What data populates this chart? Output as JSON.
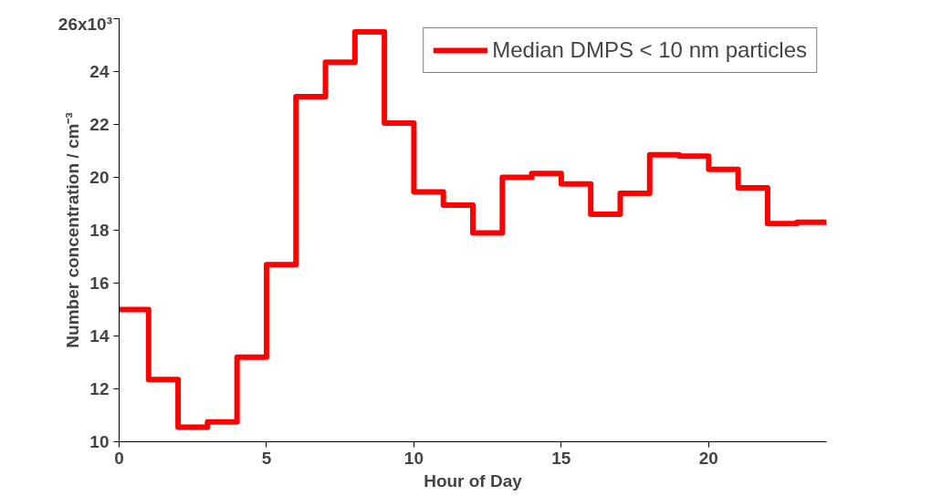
{
  "chart_data": {
    "type": "step",
    "xlabel": "Hour of Day",
    "ylabel": "Number concentration / cm⁻³",
    "x": [
      0,
      1,
      2,
      3,
      4,
      5,
      6,
      7,
      8,
      9,
      10,
      11,
      12,
      13,
      14,
      15,
      16,
      17,
      18,
      19,
      20,
      21,
      22,
      23,
      24
    ],
    "series": [
      {
        "name": "Median DMPS < 10 nm particles",
        "color": "#ff0000",
        "values": [
          15.0,
          12.35,
          10.55,
          10.75,
          13.2,
          16.7,
          23.05,
          24.35,
          25.5,
          22.05,
          19.45,
          18.95,
          17.9,
          20.0,
          20.15,
          19.75,
          18.6,
          19.4,
          20.85,
          20.8,
          20.3,
          19.6,
          18.25,
          18.3,
          18.3
        ]
      }
    ],
    "xlim": [
      0,
      24
    ],
    "xticks": [
      0,
      5,
      10,
      15,
      20
    ],
    "ylim": [
      10,
      26
    ],
    "yticks": [
      10,
      12,
      14,
      16,
      18,
      20,
      22,
      24,
      {
        "value": 26,
        "label": null
      }
    ],
    "annotations": [
      "26x10³"
    ],
    "grid": false,
    "legend": "top right",
    "line_style": "solid",
    "marker": "none"
  }
}
